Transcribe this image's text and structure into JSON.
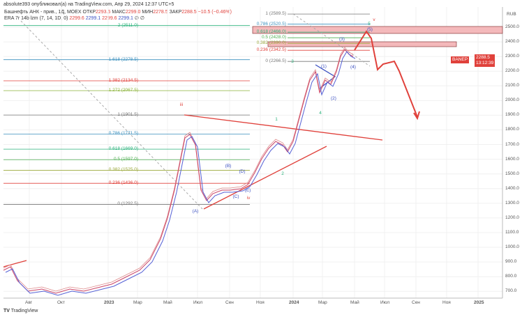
{
  "header": "absolute393 опубликовал(а) на TradingView.com, Апр 29, 2024 12:37 UTC+5",
  "legend": {
    "symbol": "Башнефть АНК - прив., 1Д, MOEX",
    "open_label": "ОТКР",
    "open": "2293.5",
    "high_label": "МАКС",
    "high": "2299.0",
    "low_label": "МИН",
    "low": "2278.5",
    "close_label": "ЗАКР",
    "close": "2288.5",
    "change": "−10.5 (−0.46%)",
    "indicator": "ERA 7r 14b lzm (7, 14, 1D, 0)",
    "ind_values": [
      "2299.6",
      "2299.1",
      "2299.6",
      "2299.1",
      "∅ ∅"
    ]
  },
  "currency": "RUB",
  "price_ticks": [
    "2500.0",
    "2400.0",
    "2300.0",
    "2200.0",
    "2100.0",
    "2000.0",
    "1900.0",
    "1800.0",
    "1700.0",
    "1600.0",
    "1500.0",
    "1400.0",
    "1300.0",
    "1200.0",
    "1100.0",
    "1000.0",
    "900.0",
    "800.0",
    "700.0"
  ],
  "time_ticks": [
    "Авг",
    "Окт",
    "2023",
    "Мар",
    "Май",
    "Июл",
    "Сен",
    "Ноя",
    "2024",
    "Мар",
    "Май",
    "Июл",
    "Сен",
    "Ноя",
    "2025"
  ],
  "last_price": {
    "ticker": "BANEP",
    "price": "2288.5",
    "countdown": "13:12:39"
  },
  "fib_lower": [
    {
      "label": "2 (2511.0)",
      "price": 2511,
      "color": "#2ab27b"
    },
    {
      "label": "1.618 (2278.5)",
      "price": 2278.5,
      "color": "#3a8fbd"
    },
    {
      "label": "1.382 (2134.5)",
      "price": 2134.5,
      "color": "#e0413b"
    },
    {
      "label": "1.272 (2067.5)",
      "price": 2067.5,
      "color": "#8bb33a"
    },
    {
      "label": "1 (1901.5)",
      "price": 1901.5,
      "color": "#777777"
    },
    {
      "label": "0.786 (1771.5)",
      "price": 1771.5,
      "color": "#3a8fbd"
    },
    {
      "label": "0.618 (1669.0)",
      "price": 1669,
      "color": "#2ab27b"
    },
    {
      "label": "0.5 (1597.0)",
      "price": 1597,
      "color": "#4caf50"
    },
    {
      "label": "0.382 (1525.0)",
      "price": 1525,
      "color": "#9aa83a"
    },
    {
      "label": "0.236 (1436.0)",
      "price": 1436,
      "color": "#e0413b"
    },
    {
      "label": "0 (1292.5)",
      "price": 1292.5,
      "color": "#777777"
    }
  ],
  "fib_upper": [
    {
      "label": "1 (2589.5)",
      "price": 2589.5,
      "color": "#777777"
    },
    {
      "label": "0.786 (2520.5)",
      "price": 2520.5,
      "color": "#3a8fbd"
    },
    {
      "label": "0.618 (2466.0)",
      "price": 2466,
      "color": "#2ab27b"
    },
    {
      "label": "0.5 (2428.0)",
      "price": 2428,
      "color": "#4caf50"
    },
    {
      "label": "0.382 (2390.0)",
      "price": 2390,
      "color": "#9aa83a"
    },
    {
      "label": "0.236 (2342.5)",
      "price": 2342.5,
      "color": "#e0413b"
    },
    {
      "label": "0 (2266.5)",
      "price": 2266.5,
      "color": "#777777"
    }
  ],
  "wave_labels": [
    "iii",
    "iv",
    "v",
    "(A)",
    "(B)",
    "(C)",
    "(D)",
    "(E)",
    "1",
    "2",
    "3",
    "4",
    "5",
    "(1)",
    "(2)",
    "(3)",
    "(4)",
    "(5)"
  ],
  "footer": "TradingView"
}
